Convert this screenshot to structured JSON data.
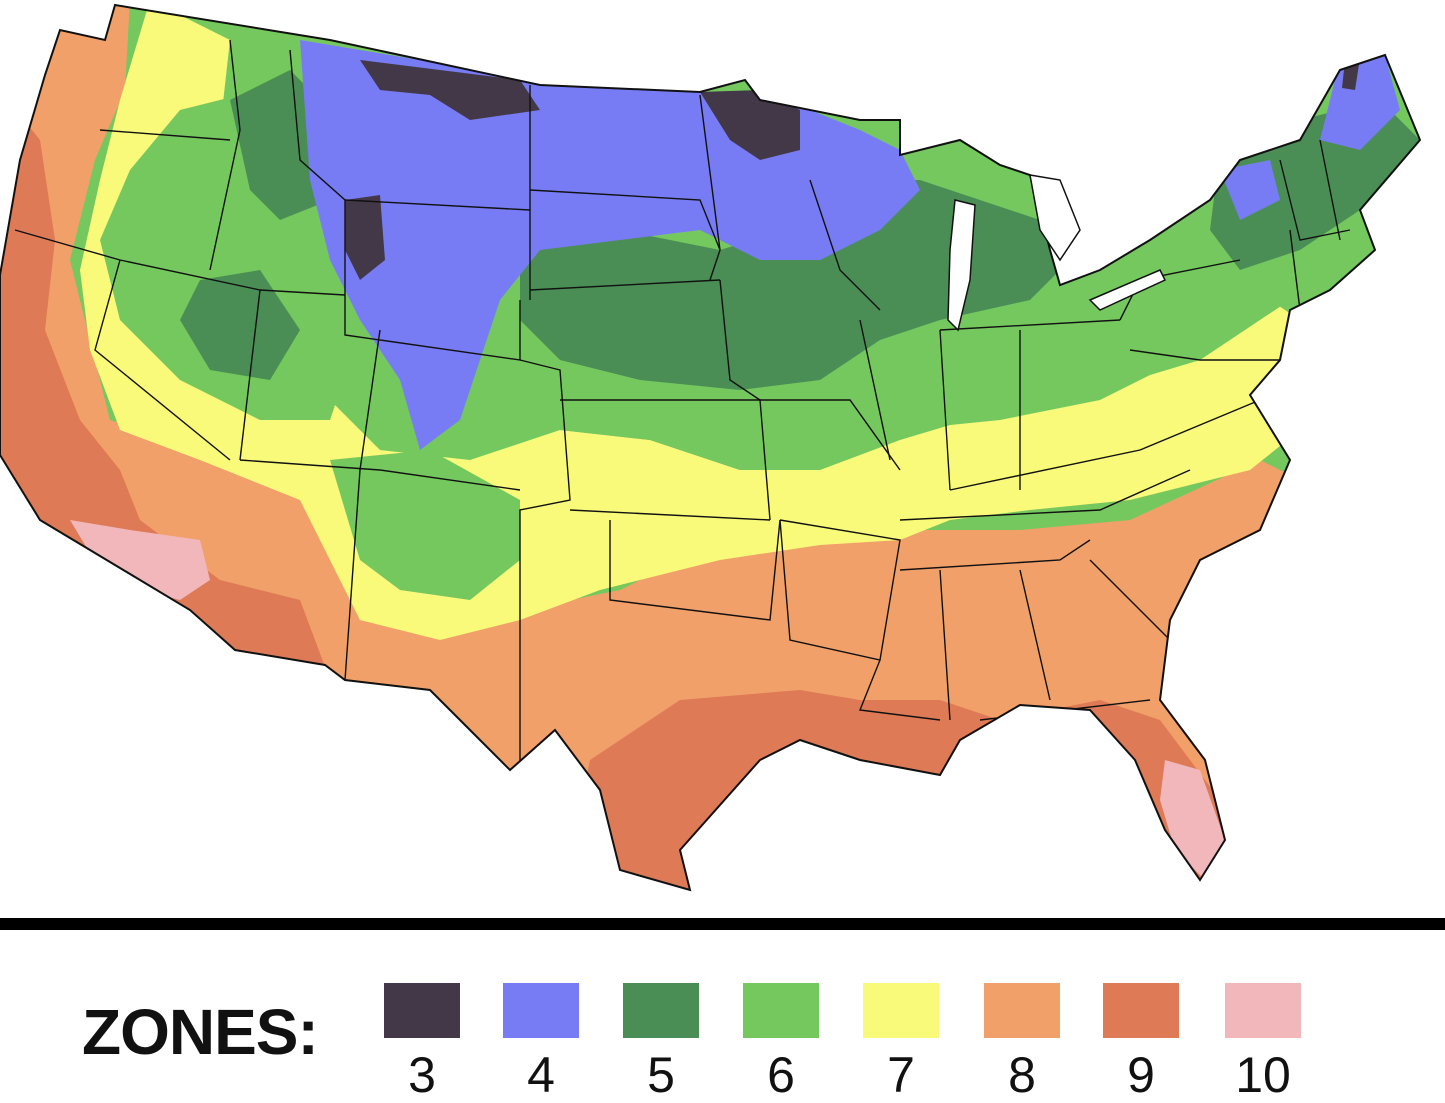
{
  "colors": {
    "zone3": "#433848",
    "zone4": "#787CF4",
    "zone5": "#4A8E55",
    "zone6": "#74C85E",
    "zone7": "#F9F97A",
    "zone8": "#F1A069",
    "zone9": "#DE7A55",
    "zone10": "#F1B7BA"
  },
  "legend": {
    "title": "ZONES:",
    "zones": [
      {
        "label": "3",
        "color": "#433848"
      },
      {
        "label": "4",
        "color": "#787CF4"
      },
      {
        "label": "5",
        "color": "#4A8E55"
      },
      {
        "label": "6",
        "color": "#74C85E"
      },
      {
        "label": "7",
        "color": "#F9F97A"
      },
      {
        "label": "8",
        "color": "#F1A069"
      },
      {
        "label": "9",
        "color": "#DE7A55"
      },
      {
        "label": "10",
        "color": "#F1B7BA"
      }
    ]
  }
}
